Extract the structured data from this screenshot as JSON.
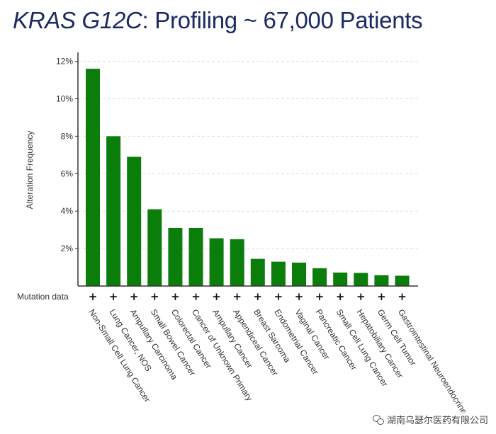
{
  "header": {
    "title_emphasis": "KRAS G12C",
    "title_rest": ": Profiling ~ 67,000 Patients"
  },
  "watermark": {
    "text": "湖南乌瑟尔医药有限公司"
  },
  "colors": {
    "bar": "#0a7d0a",
    "axis": "#333333",
    "grid": "#dddddd",
    "title": "#1b2a63"
  },
  "chart_data": {
    "type": "bar",
    "ylabel": "Alteration Frequency",
    "ylim": [
      0,
      12.4
    ],
    "yticks": [
      2,
      4,
      6,
      8,
      10,
      12
    ],
    "ytick_labels": [
      "2%",
      "4%",
      "6%",
      "8%",
      "10%",
      "12%"
    ],
    "grid": "horizontal-dashed",
    "row_label": "Mutation data",
    "row_marker": "+",
    "categories": [
      "Non-Small Cell Lung Cancer",
      "Lung Cancer, NOS",
      "Ampullary Carcinoma",
      "Small Bowel Cancer",
      "Colorectal Cancer",
      "Cancer of Unknown Primary",
      "Ampullary Cancer",
      "Appendiceal Cancer",
      "Breast Sarcoma",
      "Endometrial Cancer",
      "Vaginal Cancer",
      "Pancreatic Cancer",
      "Small Cell Lung Cancer",
      "Hepatobiliary Cancer",
      "Germ Cell Tumor",
      "Gastrointestinal Neuroendocrine"
    ],
    "values": [
      11.6,
      8.0,
      6.9,
      4.1,
      3.1,
      3.1,
      2.55,
      2.5,
      1.45,
      1.3,
      1.25,
      0.95,
      0.72,
      0.7,
      0.58,
      0.55
    ]
  }
}
